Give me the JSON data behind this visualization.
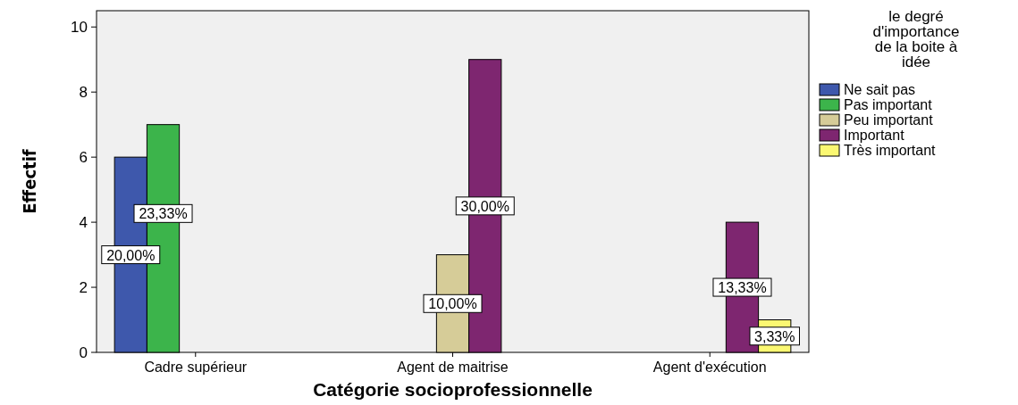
{
  "chart_data": {
    "type": "bar",
    "xlabel": "Catégorie socioprofessionnelle",
    "ylabel": "Effectif",
    "legend_title": "le degré d'importance de la boite à idée",
    "categories": [
      "Cadre supérieur",
      "Agent de maitrise",
      "Agent d'exécution"
    ],
    "series": [
      {
        "name": "Ne sait pas",
        "color": "#3e58ac",
        "values": [
          6,
          null,
          null
        ]
      },
      {
        "name": "Pas important",
        "color": "#3cb44b",
        "values": [
          7,
          null,
          null
        ]
      },
      {
        "name": "Peu important",
        "color": "#d6cc98",
        "values": [
          null,
          3,
          null
        ]
      },
      {
        "name": "Important",
        "color": "#7e2670",
        "values": [
          null,
          9,
          4
        ]
      },
      {
        "name": "Très important",
        "color": "#fbf872",
        "values": [
          null,
          null,
          1
        ]
      }
    ],
    "annotations": [
      "20,00%",
      "23,33%",
      "10,00%",
      "30,00%",
      "13,33%",
      "3,33%"
    ],
    "ylim": [
      0,
      10.5
    ],
    "yticks": [
      0,
      2,
      4,
      6,
      8,
      10
    ],
    "grid": false,
    "legend": "right"
  }
}
